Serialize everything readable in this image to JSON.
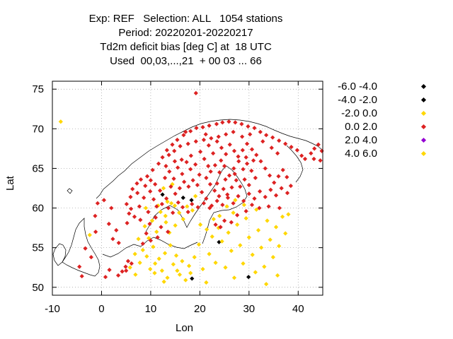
{
  "title_lines": [
    "Exp: REF   Selection: ALL   1054 stations",
    "Period: 20220201-20220217",
    "Td2m deficit bias [deg C] at  18 UTC",
    "Used  00,03,...,21  + 00 03 ... 66"
  ],
  "chart_data": {
    "type": "scatter",
    "title": "Td2m deficit bias [deg C] at  18 UTC",
    "xlabel": "Lon",
    "ylabel": "Lat",
    "xlim": [
      -10,
      45
    ],
    "ylim": [
      49,
      76
    ],
    "xticks": [
      -10,
      0,
      10,
      20,
      30,
      40
    ],
    "yticks": [
      50,
      55,
      60,
      65,
      70,
      75
    ],
    "grid": true,
    "legend_position": "right",
    "background_map": "coastlines",
    "series": [
      {
        "name": "-6.0 -4.0",
        "color": "#000000",
        "points": [
          [
            18.3,
            61.0
          ]
        ]
      },
      {
        "name": "-4.0 -2.0",
        "color": "#000000",
        "points": [
          [
            12.4,
            61.7
          ],
          [
            16.6,
            61.3
          ],
          [
            23.9,
            55.7
          ],
          [
            18.4,
            51.1
          ],
          [
            29.9,
            51.3
          ]
        ]
      },
      {
        "name": "-2.0 0.0",
        "color": "#ffd700",
        "points": [
          [
            -8.3,
            70.9
          ],
          [
            -2.4,
            56.6
          ],
          [
            5.8,
            52.5
          ],
          [
            6.9,
            51.6
          ],
          [
            7.8,
            53.1
          ],
          [
            8.4,
            54.7
          ],
          [
            9.2,
            53.9
          ],
          [
            9.9,
            52.3
          ],
          [
            10.5,
            55.1
          ],
          [
            10.8,
            51.8
          ],
          [
            11.7,
            53.6
          ],
          [
            12.3,
            52.1
          ],
          [
            12.9,
            54.3
          ],
          [
            13.4,
            51.2
          ],
          [
            14.0,
            55.3
          ],
          [
            14.6,
            52.9
          ],
          [
            15.2,
            54.0
          ],
          [
            15.9,
            51.6
          ],
          [
            16.4,
            53.3
          ],
          [
            17.1,
            50.9
          ],
          [
            18.1,
            51.8
          ],
          [
            18.9,
            53.8
          ],
          [
            19.8,
            55.4
          ],
          [
            20.6,
            52.3
          ],
          [
            21.3,
            50.6
          ],
          [
            21.9,
            54.2
          ],
          [
            22.5,
            56.4
          ],
          [
            23.2,
            53.1
          ],
          [
            23.8,
            57.5
          ],
          [
            24.5,
            55.8
          ],
          [
            25.2,
            52.5
          ],
          [
            25.8,
            56.9
          ],
          [
            26.4,
            54.6
          ],
          [
            27.0,
            51.2
          ],
          [
            27.6,
            57.9
          ],
          [
            28.2,
            55.3
          ],
          [
            28.8,
            53.0
          ],
          [
            29.4,
            58.7
          ],
          [
            30.0,
            56.3
          ],
          [
            30.7,
            54.1
          ],
          [
            31.3,
            51.9
          ],
          [
            31.9,
            57.2
          ],
          [
            32.5,
            55.0
          ],
          [
            33.1,
            52.6
          ],
          [
            33.7,
            58.4
          ],
          [
            34.3,
            56.0
          ],
          [
            34.9,
            53.8
          ],
          [
            35.5,
            57.6
          ],
          [
            36.1,
            55.2
          ],
          [
            36.8,
            58.9
          ],
          [
            37.4,
            56.8
          ],
          [
            38.0,
            59.2
          ],
          [
            7.5,
            56.1
          ],
          [
            8.8,
            57.7
          ],
          [
            9.6,
            56.2
          ],
          [
            10.3,
            58.4
          ],
          [
            11.2,
            57.0
          ],
          [
            12.0,
            59.5
          ],
          [
            13.1,
            58.2
          ],
          [
            14.2,
            60.6
          ],
          [
            15.0,
            57.8
          ],
          [
            15.8,
            59.4
          ],
          [
            16.6,
            58.6
          ],
          [
            17.4,
            60.2
          ],
          [
            18.5,
            59.7
          ],
          [
            19.1,
            61.5
          ],
          [
            12.6,
            62.5
          ],
          [
            14.4,
            63.0
          ],
          [
            11.5,
            60.3
          ],
          [
            13.8,
            56.9
          ],
          [
            9.0,
            60.0
          ],
          [
            6.8,
            54.2
          ],
          [
            24.0,
            59.0
          ],
          [
            25.5,
            60.2
          ],
          [
            26.8,
            59.4
          ],
          [
            22.8,
            58.6
          ],
          [
            21.4,
            57.3
          ],
          [
            20.1,
            57.9
          ],
          [
            29.0,
            60.4
          ],
          [
            31.5,
            59.8
          ],
          [
            27.2,
            61.0
          ],
          [
            35.8,
            51.5
          ],
          [
            33.5,
            50.4
          ],
          [
            10.9,
            53.0
          ],
          [
            12.7,
            50.7
          ],
          [
            15.4,
            52.1
          ],
          [
            17.8,
            52.7
          ]
        ]
      },
      {
        "name": "0.0 2.0",
        "color": "#dd2222",
        "points": [
          [
            19.2,
            74.5
          ],
          [
            -3.3,
            54.9
          ],
          [
            -2.1,
            53.8
          ],
          [
            -1.2,
            57.0
          ],
          [
            -1.3,
            59.0
          ],
          [
            -0.8,
            60.6
          ],
          [
            -4.0,
            51.4
          ],
          [
            -4.5,
            52.6
          ],
          [
            4.2,
            52.0
          ],
          [
            4.9,
            52.6
          ],
          [
            5.4,
            53.3
          ],
          [
            3.4,
            51.5
          ],
          [
            0.8,
            51.3
          ],
          [
            1.6,
            52.2
          ],
          [
            2.3,
            56.1
          ],
          [
            5.2,
            58.1
          ],
          [
            5.6,
            59.3
          ],
          [
            5.1,
            60.5
          ],
          [
            5.9,
            61.4
          ],
          [
            6.3,
            62.4
          ],
          [
            7.2,
            63.1
          ],
          [
            8.0,
            63.6
          ],
          [
            9.3,
            64.0
          ],
          [
            10.4,
            64.8
          ],
          [
            11.6,
            65.6
          ],
          [
            12.4,
            66.4
          ],
          [
            13.3,
            67.3
          ],
          [
            14.4,
            68.0
          ],
          [
            15.4,
            68.6
          ],
          [
            16.7,
            69.2
          ],
          [
            18.1,
            69.7
          ],
          [
            19.3,
            70.1
          ],
          [
            20.6,
            70.2
          ],
          [
            21.9,
            70.4
          ],
          [
            23.4,
            70.6
          ],
          [
            24.6,
            70.8
          ],
          [
            25.9,
            70.9
          ],
          [
            27.2,
            70.8
          ],
          [
            28.5,
            70.6
          ],
          [
            29.8,
            70.3
          ],
          [
            31.1,
            70.1
          ],
          [
            32.3,
            69.6
          ],
          [
            33.5,
            69.2
          ],
          [
            34.8,
            68.9
          ],
          [
            36.1,
            68.5
          ],
          [
            37.4,
            68.1
          ],
          [
            38.6,
            67.7
          ],
          [
            39.8,
            67.3
          ],
          [
            40.7,
            66.6
          ],
          [
            41.4,
            66.2
          ],
          [
            42.6,
            66.9
          ],
          [
            43.3,
            67.5
          ],
          [
            44.1,
            68.0
          ],
          [
            44.8,
            67.2
          ],
          [
            44.5,
            66.0
          ],
          [
            43.2,
            66.2
          ],
          [
            10.6,
            61.1
          ],
          [
            11.2,
            60.2
          ],
          [
            9.5,
            59.5
          ],
          [
            7.7,
            60.2
          ],
          [
            8.6,
            61.3
          ],
          [
            9.9,
            62.1
          ],
          [
            10.9,
            63.0
          ],
          [
            11.9,
            62.2
          ],
          [
            12.9,
            63.8
          ],
          [
            13.8,
            64.6
          ],
          [
            14.7,
            63.7
          ],
          [
            15.5,
            65.1
          ],
          [
            16.4,
            64.3
          ],
          [
            17.3,
            65.8
          ],
          [
            18.2,
            66.6
          ],
          [
            19.1,
            65.5
          ],
          [
            20.1,
            67.1
          ],
          [
            20.9,
            66.2
          ],
          [
            21.8,
            67.9
          ],
          [
            22.7,
            66.9
          ],
          [
            23.5,
            68.4
          ],
          [
            24.4,
            67.6
          ],
          [
            25.3,
            66.8
          ],
          [
            26.1,
            68.0
          ],
          [
            27.0,
            67.2
          ],
          [
            27.9,
            65.9
          ],
          [
            28.8,
            64.9
          ],
          [
            29.6,
            65.6
          ],
          [
            30.5,
            64.7
          ],
          [
            31.3,
            63.8
          ],
          [
            30.0,
            62.9
          ],
          [
            29.1,
            63.6
          ],
          [
            28.2,
            62.7
          ],
          [
            27.4,
            63.5
          ],
          [
            26.5,
            62.6
          ],
          [
            25.6,
            61.7
          ],
          [
            24.8,
            62.4
          ],
          [
            23.9,
            61.5
          ],
          [
            23.0,
            62.2
          ],
          [
            22.1,
            63.0
          ],
          [
            21.3,
            63.8
          ],
          [
            22.2,
            64.6
          ],
          [
            23.1,
            65.4
          ],
          [
            24.0,
            64.5
          ],
          [
            25.0,
            65.3
          ],
          [
            26.0,
            64.1
          ],
          [
            26.9,
            65.0
          ],
          [
            27.8,
            66.5
          ],
          [
            28.7,
            67.3
          ],
          [
            29.6,
            68.1
          ],
          [
            30.6,
            67.4
          ],
          [
            31.5,
            66.7
          ],
          [
            32.4,
            65.9
          ],
          [
            33.3,
            65.0
          ],
          [
            34.2,
            64.1
          ],
          [
            35.1,
            63.2
          ],
          [
            36.0,
            64.0
          ],
          [
            36.9,
            64.8
          ],
          [
            37.7,
            63.9
          ],
          [
            38.5,
            62.8
          ],
          [
            37.8,
            61.9
          ],
          [
            36.6,
            62.5
          ],
          [
            35.5,
            61.6
          ],
          [
            34.4,
            62.3
          ],
          [
            33.3,
            61.4
          ],
          [
            32.2,
            62.1
          ],
          [
            31.1,
            61.2
          ],
          [
            30.0,
            61.8
          ],
          [
            28.9,
            60.9
          ],
          [
            27.8,
            61.5
          ],
          [
            26.8,
            60.6
          ],
          [
            25.7,
            61.3
          ],
          [
            24.6,
            60.4
          ],
          [
            23.5,
            60.9
          ],
          [
            22.4,
            60.3
          ],
          [
            21.3,
            61.2
          ],
          [
            20.4,
            62.0
          ],
          [
            19.5,
            62.9
          ],
          [
            18.6,
            63.5
          ],
          [
            17.7,
            62.7
          ],
          [
            16.8,
            63.3
          ],
          [
            15.9,
            62.5
          ],
          [
            15.0,
            61.8
          ],
          [
            14.1,
            62.7
          ],
          [
            13.2,
            61.2
          ],
          [
            12.3,
            60.5
          ],
          [
            13.6,
            60.0
          ],
          [
            14.5,
            59.4
          ],
          [
            15.6,
            60.7
          ],
          [
            16.5,
            60.1
          ],
          [
            17.6,
            59.5
          ],
          [
            18.4,
            60.5
          ],
          [
            19.6,
            60.1
          ],
          [
            20.8,
            60.6
          ],
          [
            22.0,
            60.0
          ],
          [
            25.0,
            58.4
          ],
          [
            24.2,
            57.6
          ],
          [
            23.2,
            57.9
          ],
          [
            26.4,
            58.2
          ],
          [
            27.6,
            59.1
          ],
          [
            29.4,
            59.6
          ],
          [
            30.6,
            60.4
          ],
          [
            32.1,
            60.0
          ],
          [
            34.0,
            60.2
          ],
          [
            36.2,
            60.0
          ],
          [
            7.9,
            58.5
          ],
          [
            6.7,
            58.9
          ],
          [
            6.0,
            59.9
          ],
          [
            7.3,
            61.9
          ],
          [
            8.9,
            62.8
          ],
          [
            10.0,
            63.5
          ],
          [
            5.0,
            52.1
          ],
          [
            6.1,
            53.0
          ],
          [
            3.5,
            55.6
          ],
          [
            3.0,
            57.2
          ],
          [
            1.5,
            58.0
          ],
          [
            2.0,
            60.0
          ],
          [
            0.5,
            61.0
          ],
          [
            11.0,
            58.8
          ],
          [
            9.8,
            58.0
          ],
          [
            12.1,
            57.6
          ],
          [
            13.5,
            57.0
          ],
          [
            11.4,
            56.3
          ],
          [
            10.0,
            55.9
          ],
          [
            8.4,
            55.5
          ],
          [
            9.1,
            56.8
          ],
          [
            30.2,
            69.3
          ],
          [
            28.6,
            69.0
          ],
          [
            26.8,
            69.6
          ],
          [
            25.3,
            69.3
          ],
          [
            23.8,
            69.0
          ],
          [
            22.3,
            68.8
          ],
          [
            20.8,
            68.6
          ],
          [
            19.2,
            68.4
          ],
          [
            17.6,
            68.1
          ],
          [
            16.0,
            67.8
          ],
          [
            14.8,
            67.2
          ],
          [
            13.7,
            66.7
          ],
          [
            32.8,
            68.4
          ],
          [
            34.6,
            67.6
          ],
          [
            35.8,
            66.9
          ],
          [
            30.9,
            66.0
          ],
          [
            29.4,
            66.4
          ],
          [
            27.1,
            64.3
          ],
          [
            25.2,
            63.6
          ],
          [
            23.5,
            63.1
          ],
          [
            21.7,
            65.3
          ],
          [
            19.9,
            64.2
          ],
          [
            18.1,
            64.9
          ],
          [
            16.3,
            66.1
          ],
          [
            14.9,
            65.9
          ],
          [
            13.1,
            65.3
          ],
          [
            24.3,
            66.0
          ],
          [
            21.2,
            69.3
          ],
          [
            17.1,
            69.6
          ]
        ]
      },
      {
        "name": "2.0 4.0",
        "color": "#9400d3",
        "points": []
      },
      {
        "name": "4.0 6.0",
        "color": "#ffd700",
        "points": [
          [
            13.4,
            60.8
          ],
          [
            14.9,
            60.3
          ],
          [
            13.0,
            59.0
          ]
        ]
      }
    ]
  }
}
